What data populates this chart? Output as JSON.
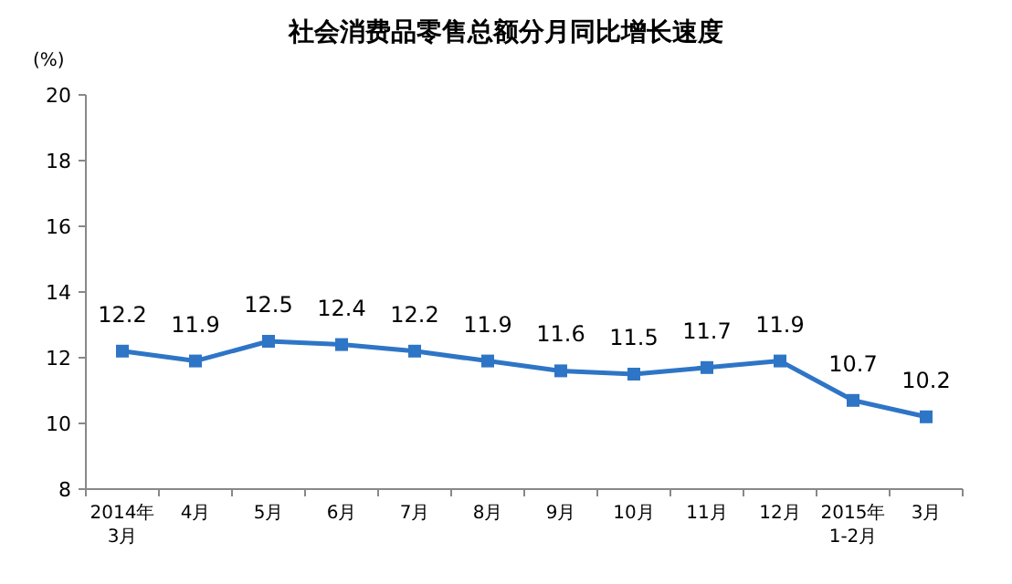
{
  "chart_data": {
    "type": "line",
    "title": "社会消费品零售总额分月同比增长速度",
    "ylabel": "(%)",
    "categories": [
      "2014年\n3月",
      "4月",
      "5月",
      "6月",
      "7月",
      "8月",
      "9月",
      "10月",
      "11月",
      "12月",
      "2015年\n1-2月",
      "3月"
    ],
    "series": [
      {
        "color": "#2e75c6",
        "values": [
          12.2,
          11.9,
          12.5,
          12.4,
          12.2,
          11.9,
          11.6,
          11.5,
          11.7,
          11.9,
          10.7,
          10.2
        ]
      }
    ],
    "ylim": [
      8,
      20
    ],
    "yticks": [
      8,
      10,
      12,
      14,
      16,
      18,
      20
    ],
    "marker": "square",
    "data_labels": true,
    "grid": false
  }
}
